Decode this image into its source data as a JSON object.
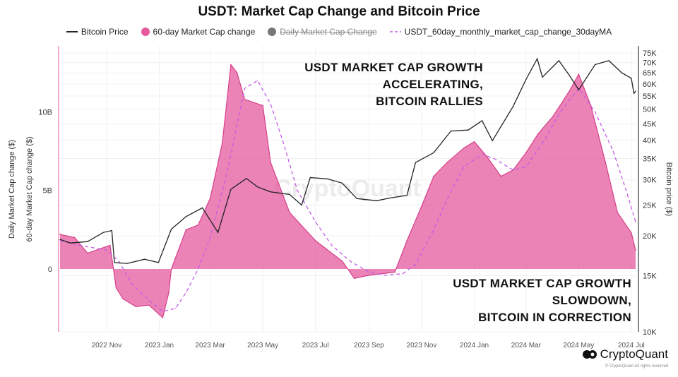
{
  "chart_data": {
    "type": "area",
    "title": "USDT: Market Cap Change and Bitcoin Price",
    "legend": [
      {
        "name": "Bitcoin Price",
        "color": "#222222",
        "style": "line"
      },
      {
        "name": "60-day Market Cap change",
        "color": "#e45a9d",
        "style": "circle"
      },
      {
        "name": "Daily Market Cap Change",
        "color": "#777777",
        "style": "circle",
        "hidden": true
      },
      {
        "name": "USDT_60day_monthly_market_cap_change_30dayMA",
        "color": "#c45ce6",
        "style": "dashed"
      }
    ],
    "legend_placement": "top",
    "ylabel_left": [
      "Daily Market Cap change ($)",
      "60-day Market Cap change ($)"
    ],
    "ylabel_right": "Bitcoin price ($)",
    "x_range": [
      "2022-09-08",
      "2024-07-06"
    ],
    "ylim_left": [
      -4,
      14.2
    ],
    "ylim_right": [
      10000,
      79000
    ],
    "right_scale": "log",
    "x_ticks": [
      {
        "date": "2022-11-01",
        "label": "2022 Nov"
      },
      {
        "date": "2023-01-01",
        "label": "2023 Jan"
      },
      {
        "date": "2023-03-01",
        "label": "2023 Mar"
      },
      {
        "date": "2023-05-01",
        "label": "2023 May"
      },
      {
        "date": "2023-07-01",
        "label": "2023 Jul"
      },
      {
        "date": "2023-09-01",
        "label": "2023 Sep"
      },
      {
        "date": "2023-11-01",
        "label": "2023 Nov"
      },
      {
        "date": "2024-01-01",
        "label": "2024 Jan"
      },
      {
        "date": "2024-03-01",
        "label": "2024 Mar"
      },
      {
        "date": "2024-05-01",
        "label": "2024 May"
      },
      {
        "date": "2024-07-01",
        "label": "2024 Jul"
      }
    ],
    "left_ticks": [
      {
        "v": 0,
        "label": "0"
      },
      {
        "v": 5,
        "label": "5B"
      },
      {
        "v": 10,
        "label": "10B"
      }
    ],
    "right_ticks": [
      {
        "v": 10000,
        "label": "10K"
      },
      {
        "v": 15000,
        "label": "15K"
      },
      {
        "v": 20000,
        "label": "20K"
      },
      {
        "v": 25000,
        "label": "25K"
      },
      {
        "v": 30000,
        "label": "30K"
      },
      {
        "v": 35000,
        "label": "35K"
      },
      {
        "v": 40000,
        "label": "40K"
      },
      {
        "v": 45000,
        "label": "45K"
      },
      {
        "v": 50000,
        "label": "50K"
      },
      {
        "v": 55000,
        "label": "55K"
      },
      {
        "v": 60000,
        "label": "60K"
      },
      {
        "v": 65000,
        "label": "65K"
      },
      {
        "v": 70000,
        "label": "70K"
      },
      {
        "v": 75000,
        "label": "75K"
      }
    ],
    "series": [
      {
        "name": "60-day Market Cap change",
        "unit": "B USD",
        "points": [
          [
            "2022-09-08",
            2.2
          ],
          [
            "2022-09-25",
            2.0
          ],
          [
            "2022-10-10",
            1.0
          ],
          [
            "2022-10-25",
            1.3
          ],
          [
            "2022-11-05",
            1.5
          ],
          [
            "2022-11-12",
            -1.2
          ],
          [
            "2022-11-20",
            -1.9
          ],
          [
            "2022-12-05",
            -2.4
          ],
          [
            "2022-12-20",
            -2.3
          ],
          [
            "2023-01-05",
            -3.1
          ],
          [
            "2023-01-12",
            -1.5
          ],
          [
            "2023-01-15",
            0
          ],
          [
            "2023-02-01",
            2.5
          ],
          [
            "2023-02-15",
            2.8
          ],
          [
            "2023-03-01",
            4.5
          ],
          [
            "2023-03-15",
            8.0
          ],
          [
            "2023-03-25",
            13.0
          ],
          [
            "2023-04-01",
            12.5
          ],
          [
            "2023-04-10",
            10.8
          ],
          [
            "2023-05-01",
            10.4
          ],
          [
            "2023-05-10",
            6.8
          ],
          [
            "2023-06-01",
            3.6
          ],
          [
            "2023-07-01",
            1.8
          ],
          [
            "2023-08-01",
            0.5
          ],
          [
            "2023-08-15",
            -0.6
          ],
          [
            "2023-09-01",
            -0.4
          ],
          [
            "2023-10-01",
            -0.2
          ],
          [
            "2023-10-15",
            1.8
          ],
          [
            "2023-11-01",
            4.0
          ],
          [
            "2023-11-15",
            5.9
          ],
          [
            "2023-12-01",
            6.8
          ],
          [
            "2023-12-20",
            7.7
          ],
          [
            "2024-01-01",
            8.1
          ],
          [
            "2024-01-15",
            7.2
          ],
          [
            "2024-02-01",
            5.9
          ],
          [
            "2024-02-15",
            6.3
          ],
          [
            "2024-03-01",
            7.4
          ],
          [
            "2024-03-15",
            8.6
          ],
          [
            "2024-04-01",
            9.7
          ],
          [
            "2024-04-20",
            11.3
          ],
          [
            "2024-05-01",
            12.4
          ],
          [
            "2024-05-15",
            10.4
          ],
          [
            "2024-06-01",
            6.8
          ],
          [
            "2024-06-15",
            3.6
          ],
          [
            "2024-07-01",
            2.3
          ],
          [
            "2024-07-06",
            1.2
          ]
        ]
      },
      {
        "name": "USDT_60day_monthly_market_cap_change_30dayMA",
        "unit": "B USD",
        "points": [
          [
            "2022-09-08",
            1.8
          ],
          [
            "2022-10-01",
            1.5
          ],
          [
            "2022-11-01",
            1.2
          ],
          [
            "2022-11-15",
            0.5
          ],
          [
            "2022-12-01",
            -1.0
          ],
          [
            "2022-12-20",
            -2.0
          ],
          [
            "2023-01-05",
            -2.7
          ],
          [
            "2023-01-20",
            -2.5
          ],
          [
            "2023-02-01",
            -1.5
          ],
          [
            "2023-02-15",
            0
          ],
          [
            "2023-03-01",
            2.0
          ],
          [
            "2023-03-20",
            6.0
          ],
          [
            "2023-04-10",
            11.5
          ],
          [
            "2023-04-25",
            12.0
          ],
          [
            "2023-05-10",
            10.5
          ],
          [
            "2023-05-25",
            8.0
          ],
          [
            "2023-06-10",
            5.0
          ],
          [
            "2023-07-01",
            3.0
          ],
          [
            "2023-07-20",
            1.5
          ],
          [
            "2023-08-10",
            0.5
          ],
          [
            "2023-09-01",
            -0.2
          ],
          [
            "2023-09-20",
            -0.4
          ],
          [
            "2023-10-10",
            -0.3
          ],
          [
            "2023-10-25",
            0.3
          ],
          [
            "2023-11-15",
            2.5
          ],
          [
            "2023-12-01",
            4.5
          ],
          [
            "2023-12-20",
            6.5
          ],
          [
            "2024-01-10",
            7.3
          ],
          [
            "2024-01-25",
            7.0
          ],
          [
            "2024-02-15",
            6.3
          ],
          [
            "2024-03-01",
            6.5
          ],
          [
            "2024-03-20",
            8.0
          ],
          [
            "2024-04-10",
            10.0
          ],
          [
            "2024-05-01",
            11.5
          ],
          [
            "2024-05-20",
            10.0
          ],
          [
            "2024-06-10",
            7.5
          ],
          [
            "2024-06-25",
            5.0
          ],
          [
            "2024-07-06",
            3.0
          ]
        ]
      },
      {
        "name": "Bitcoin Price",
        "unit": "USD",
        "axis": "right",
        "points": [
          [
            "2022-09-08",
            19500
          ],
          [
            "2022-09-20",
            19000
          ],
          [
            "2022-10-10",
            19200
          ],
          [
            "2022-10-28",
            20500
          ],
          [
            "2022-11-07",
            20800
          ],
          [
            "2022-11-10",
            16500
          ],
          [
            "2022-11-25",
            16400
          ],
          [
            "2022-12-15",
            16900
          ],
          [
            "2022-12-31",
            16500
          ],
          [
            "2023-01-15",
            21000
          ],
          [
            "2023-02-01",
            23000
          ],
          [
            "2023-02-20",
            24500
          ],
          [
            "2023-03-10",
            20500
          ],
          [
            "2023-03-25",
            28000
          ],
          [
            "2023-04-12",
            30300
          ],
          [
            "2023-04-25",
            28500
          ],
          [
            "2023-05-10",
            27500
          ],
          [
            "2023-06-01",
            27000
          ],
          [
            "2023-06-15",
            25000
          ],
          [
            "2023-06-25",
            30500
          ],
          [
            "2023-07-15",
            30200
          ],
          [
            "2023-08-01",
            29300
          ],
          [
            "2023-08-18",
            26200
          ],
          [
            "2023-09-10",
            25800
          ],
          [
            "2023-09-25",
            26300
          ],
          [
            "2023-10-15",
            26800
          ],
          [
            "2023-10-25",
            34000
          ],
          [
            "2023-11-15",
            36500
          ],
          [
            "2023-12-05",
            42700
          ],
          [
            "2023-12-25",
            43000
          ],
          [
            "2024-01-10",
            46000
          ],
          [
            "2024-01-22",
            39800
          ],
          [
            "2024-02-15",
            51000
          ],
          [
            "2024-03-01",
            62000
          ],
          [
            "2024-03-14",
            72000
          ],
          [
            "2024-03-20",
            63000
          ],
          [
            "2024-04-08",
            71000
          ],
          [
            "2024-04-20",
            64000
          ],
          [
            "2024-05-01",
            57500
          ],
          [
            "2024-05-20",
            69000
          ],
          [
            "2024-06-05",
            71000
          ],
          [
            "2024-06-20",
            65000
          ],
          [
            "2024-07-01",
            62500
          ],
          [
            "2024-07-04",
            56000
          ],
          [
            "2024-07-06",
            57000
          ]
        ]
      }
    ],
    "annotations": [
      [
        "USDT MARKET CAP GROWTH",
        "ACCELERATING,",
        "BITCOIN RALLIES"
      ],
      [
        "USDT MARKET CAP GROWTH",
        "SLOWDOWN,",
        "BITCOIN IN CORRECTION"
      ]
    ],
    "watermark": "CryptoQuant"
  },
  "brand": {
    "logo_text": "CryptoQuant",
    "copyright": "© CryptoQuant All rights reserved."
  }
}
